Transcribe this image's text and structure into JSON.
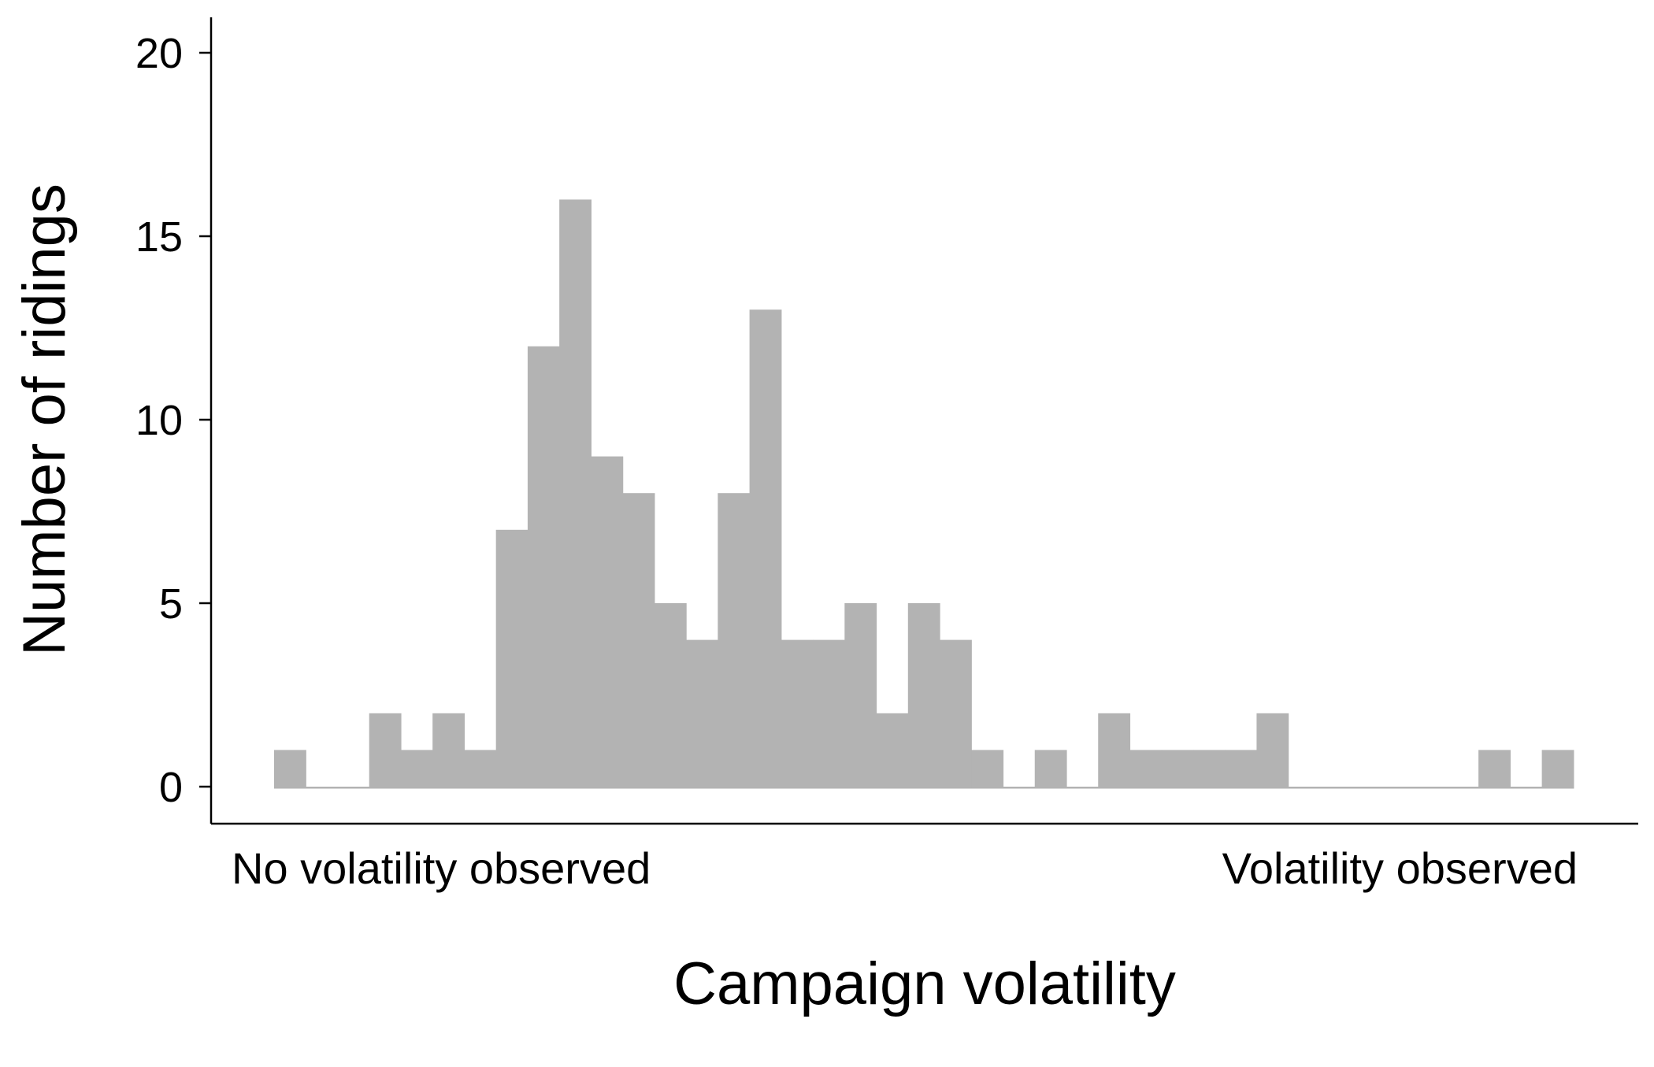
{
  "chart_data": {
    "type": "bar",
    "title": "",
    "xlabel": "Campaign volatility",
    "ylabel": "Number of ridings",
    "x_text_labels": [
      "No volatility observed",
      "Volatility observed"
    ],
    "yticks": [
      "0",
      "5",
      "10",
      "15",
      "20"
    ],
    "ylim": [
      0,
      21
    ],
    "grid": false,
    "legend": "none",
    "bar_color": "#b3b3b3",
    "series": [
      {
        "values": [
          1,
          0,
          0,
          2,
          1,
          2,
          1,
          7,
          12,
          16,
          9,
          8,
          5,
          4,
          8,
          13,
          4,
          4,
          5,
          2,
          5,
          4,
          1,
          0,
          1,
          0,
          2,
          1,
          1,
          1,
          1,
          2,
          0,
          0,
          0,
          0,
          0,
          0,
          1,
          0,
          1
        ]
      }
    ]
  }
}
